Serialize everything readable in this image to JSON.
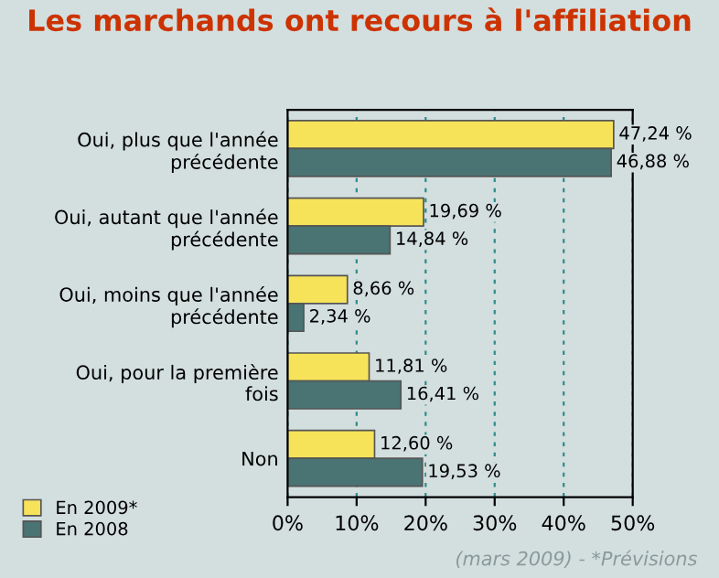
{
  "chart_data": {
    "type": "bar",
    "orientation": "horizontal",
    "title": "Les marchands ont recours à l'affiliation",
    "categories": [
      "Oui, plus que l'année\nprécédente",
      "Oui, autant que l'année\nprécédente",
      "Oui, moins que l'année\nprécédente",
      "Oui, pour la première\nfois",
      "Non"
    ],
    "series": [
      {
        "name": "En 2009*",
        "color": "#f7e35a",
        "values": [
          47.24,
          19.69,
          8.66,
          11.81,
          12.6
        ],
        "value_labels": [
          "47,24 %",
          "19,69 %",
          "8,66 %",
          "11,81 %",
          "12,60 %"
        ]
      },
      {
        "name": "En 2008",
        "color": "#4a7373",
        "values": [
          46.88,
          14.84,
          2.34,
          16.41,
          19.53
        ],
        "value_labels": [
          "46,88 %",
          "14,84 %",
          "2,34 %",
          "16,41 %",
          "19,53 %"
        ]
      }
    ],
    "xlim": [
      0,
      50
    ],
    "xticks": [
      {
        "value": 0,
        "label": "0%"
      },
      {
        "value": 10,
        "label": "10%"
      },
      {
        "value": 20,
        "label": "20%"
      },
      {
        "value": 30,
        "label": "30%"
      },
      {
        "value": 40,
        "label": "40%"
      },
      {
        "value": 50,
        "label": "50%"
      }
    ],
    "grid": "x",
    "legend": "bottom left",
    "annotations": [
      "(mars 2009) - *Prévisions"
    ]
  }
}
